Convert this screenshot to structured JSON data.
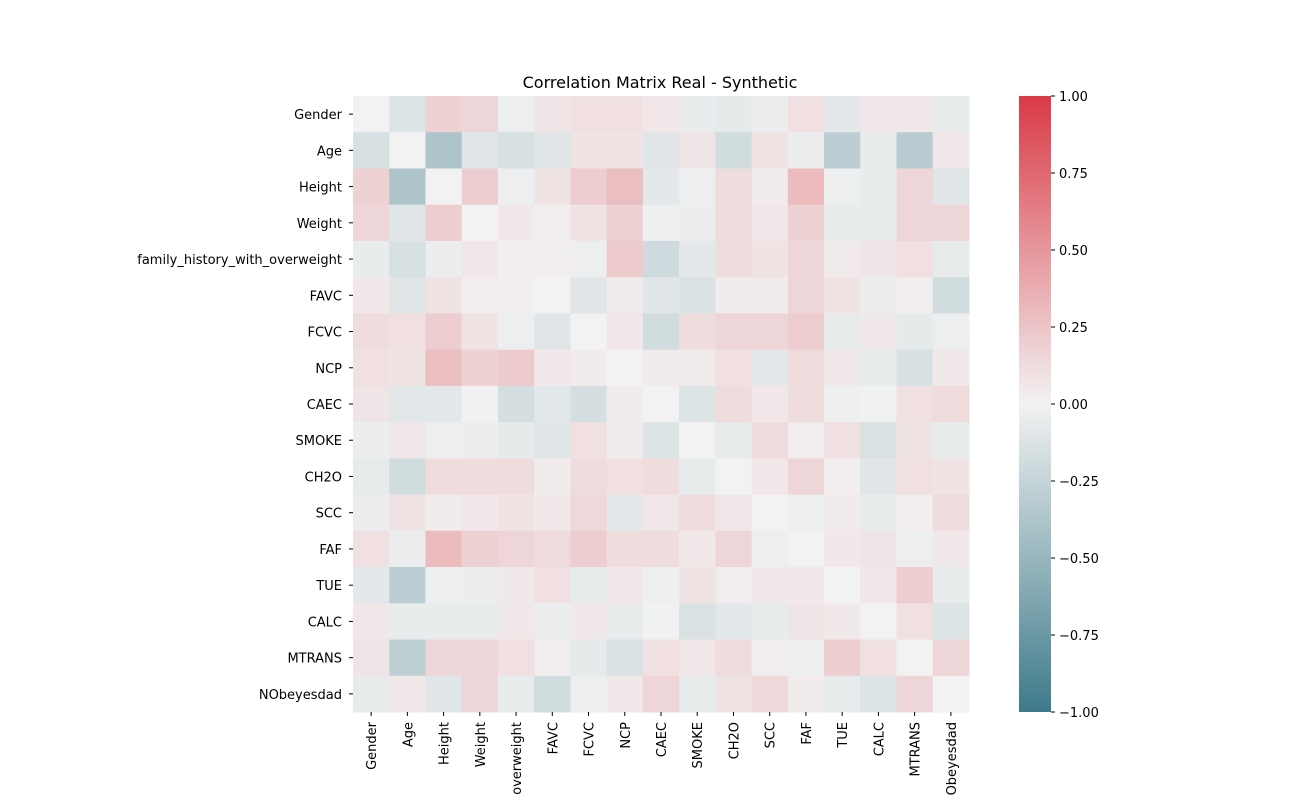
{
  "chart_data": {
    "type": "heatmap",
    "title": "Correlation Matrix Real - Synthetic",
    "xlabel": "",
    "ylabel": "",
    "labels": [
      "Gender",
      "Age",
      "Height",
      "Weight",
      "family_history_with_overweight",
      "FAVC",
      "FCVC",
      "NCP",
      "CAEC",
      "SMOKE",
      "CH2O",
      "SCC",
      "FAF",
      "TUE",
      "CALC",
      "MTRANS",
      "NObeyesdad"
    ],
    "x_tick_labels": [
      "Gender",
      "Age",
      "Height",
      "Weight",
      "overweight",
      "FAVC",
      "FCVC",
      "NCP",
      "CAEC",
      "SMOKE",
      "CH2O",
      "SCC",
      "FAF",
      "TUE",
      "CALC",
      "MTRANS",
      "Obeyesdad"
    ],
    "vmin": -1.0,
    "vmax": 1.0,
    "colorbar_ticks": [
      1.0,
      0.75,
      0.5,
      0.25,
      0.0,
      -0.25,
      -0.5,
      -0.75,
      -1.0
    ],
    "colorbar_tick_labels": [
      "1.00",
      "0.75",
      "0.50",
      "0.25",
      "0.00",
      "−0.25",
      "−0.50",
      "−0.75",
      "−1.00"
    ],
    "colormap": {
      "low": "#3d7a8a",
      "mid": "#f2f2f2",
      "high": "#da3a46"
    },
    "matrix": [
      [
        0.0,
        -0.12,
        0.18,
        0.15,
        -0.03,
        0.07,
        0.1,
        0.1,
        0.06,
        -0.05,
        -0.07,
        -0.04,
        0.1,
        -0.08,
        0.05,
        0.05,
        -0.06
      ],
      [
        -0.15,
        0.0,
        -0.38,
        -0.1,
        -0.15,
        -0.1,
        0.08,
        0.08,
        -0.1,
        0.07,
        -0.18,
        0.08,
        -0.04,
        -0.3,
        -0.05,
        -0.32,
        0.06
      ],
      [
        0.18,
        -0.38,
        0.0,
        0.2,
        -0.03,
        0.08,
        0.2,
        0.28,
        -0.08,
        -0.03,
        0.12,
        0.04,
        0.3,
        -0.03,
        -0.05,
        0.15,
        -0.1
      ],
      [
        0.15,
        -0.1,
        0.2,
        0.0,
        0.05,
        0.03,
        0.08,
        0.18,
        -0.02,
        -0.04,
        0.12,
        0.05,
        0.18,
        -0.05,
        -0.05,
        0.15,
        0.15
      ],
      [
        -0.05,
        -0.15,
        -0.04,
        0.06,
        0.02,
        0.02,
        -0.03,
        0.22,
        -0.2,
        -0.08,
        0.12,
        0.08,
        0.15,
        0.04,
        0.07,
        0.1,
        -0.06
      ],
      [
        0.05,
        -0.1,
        0.08,
        0.02,
        0.02,
        0.0,
        -0.1,
        0.04,
        -0.1,
        -0.14,
        0.04,
        0.04,
        0.15,
        0.08,
        -0.04,
        0.02,
        -0.18
      ],
      [
        0.12,
        0.1,
        0.2,
        0.08,
        -0.03,
        -0.1,
        0.0,
        0.06,
        -0.18,
        0.12,
        0.15,
        0.15,
        0.2,
        -0.06,
        0.05,
        -0.07,
        -0.03
      ],
      [
        0.1,
        0.08,
        0.28,
        0.18,
        0.22,
        0.05,
        0.04,
        0.0,
        0.04,
        0.04,
        0.1,
        -0.08,
        0.12,
        0.05,
        -0.05,
        -0.15,
        0.05
      ],
      [
        0.07,
        -0.09,
        -0.08,
        0.01,
        -0.16,
        -0.09,
        -0.16,
        0.04,
        0.0,
        -0.12,
        0.12,
        0.06,
        0.12,
        -0.02,
        -0.01,
        0.1,
        0.13
      ],
      [
        -0.04,
        0.06,
        -0.03,
        -0.04,
        -0.07,
        -0.1,
        0.1,
        0.04,
        -0.12,
        0.0,
        -0.06,
        0.12,
        0.03,
        0.1,
        -0.14,
        0.08,
        -0.06
      ],
      [
        -0.06,
        -0.18,
        0.12,
        0.12,
        0.12,
        0.04,
        0.12,
        0.1,
        0.12,
        -0.06,
        0.0,
        0.06,
        0.15,
        0.02,
        -0.1,
        0.1,
        0.08
      ],
      [
        -0.04,
        0.08,
        0.04,
        0.06,
        0.08,
        0.05,
        0.14,
        -0.08,
        0.06,
        0.12,
        0.06,
        0.0,
        -0.03,
        0.04,
        -0.06,
        0.02,
        0.12
      ],
      [
        0.1,
        -0.04,
        0.3,
        0.18,
        0.15,
        0.13,
        0.2,
        0.12,
        0.12,
        0.05,
        0.15,
        -0.03,
        0.0,
        0.05,
        0.07,
        -0.03,
        0.05
      ],
      [
        -0.08,
        -0.3,
        -0.03,
        -0.04,
        0.05,
        0.1,
        -0.06,
        0.06,
        -0.02,
        0.08,
        0.03,
        0.05,
        0.05,
        0.0,
        0.06,
        0.2,
        -0.06
      ],
      [
        0.06,
        -0.05,
        -0.05,
        -0.05,
        0.05,
        -0.04,
        0.05,
        -0.05,
        -0.01,
        -0.14,
        -0.09,
        -0.06,
        0.07,
        0.05,
        0.0,
        0.1,
        -0.12
      ],
      [
        0.07,
        -0.28,
        0.15,
        0.15,
        0.1,
        0.03,
        -0.07,
        -0.14,
        0.1,
        0.06,
        0.12,
        0.02,
        -0.03,
        0.2,
        0.1,
        0.0,
        0.15
      ],
      [
        -0.06,
        0.05,
        -0.1,
        0.15,
        -0.05,
        -0.18,
        -0.03,
        0.05,
        0.15,
        -0.06,
        0.08,
        0.14,
        0.04,
        -0.06,
        -0.12,
        0.15,
        0.0
      ]
    ]
  }
}
